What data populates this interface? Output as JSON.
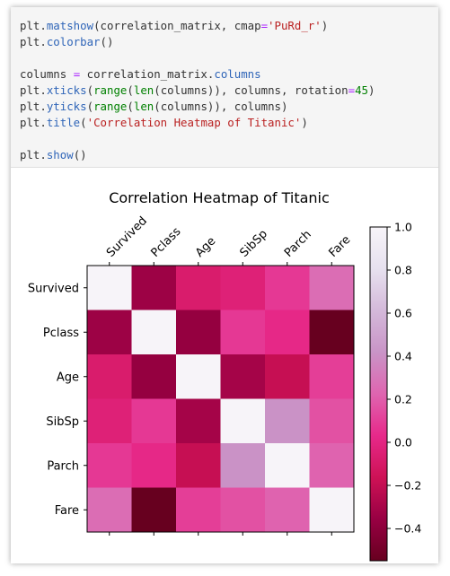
{
  "code": {
    "lines": [
      [
        {
          "t": "plt."
        },
        {
          "t": "matshow",
          "c": "fn"
        },
        {
          "t": "(correlation_matrix, cmap"
        },
        {
          "t": "=",
          "c": "op"
        },
        {
          "t": "'PuRd_r'",
          "c": "str"
        },
        {
          "t": ")"
        }
      ],
      [
        {
          "t": "plt."
        },
        {
          "t": "colorbar",
          "c": "fn"
        },
        {
          "t": "()"
        }
      ],
      [],
      [
        {
          "t": "columns "
        },
        {
          "t": "=",
          "c": "op"
        },
        {
          "t": " correlation_matrix."
        },
        {
          "t": "columns",
          "c": "fn"
        }
      ],
      [
        {
          "t": "plt."
        },
        {
          "t": "xticks",
          "c": "fn"
        },
        {
          "t": "("
        },
        {
          "t": "range",
          "c": "bi"
        },
        {
          "t": "("
        },
        {
          "t": "len",
          "c": "bi"
        },
        {
          "t": "(columns)), columns, rotation"
        },
        {
          "t": "=",
          "c": "op"
        },
        {
          "t": "45",
          "c": "num"
        },
        {
          "t": ")"
        }
      ],
      [
        {
          "t": "plt."
        },
        {
          "t": "yticks",
          "c": "fn"
        },
        {
          "t": "("
        },
        {
          "t": "range",
          "c": "bi"
        },
        {
          "t": "("
        },
        {
          "t": "len",
          "c": "bi"
        },
        {
          "t": "(columns)), columns)"
        }
      ],
      [
        {
          "t": "plt."
        },
        {
          "t": "title",
          "c": "fn"
        },
        {
          "t": "("
        },
        {
          "t": "'Correlation Heatmap of Titanic'",
          "c": "str"
        },
        {
          "t": ")"
        }
      ],
      [],
      [
        {
          "t": "plt."
        },
        {
          "t": "show",
          "c": "fn"
        },
        {
          "t": "()"
        }
      ]
    ]
  },
  "chart_data": {
    "type": "heatmap",
    "title": "Correlation Heatmap of Titanic",
    "colormap": "PuRd_r",
    "categories": [
      "Survived",
      "Pclass",
      "Age",
      "SibSp",
      "Parch",
      "Fare"
    ],
    "values": [
      [
        1.0,
        -0.34,
        -0.08,
        -0.04,
        0.08,
        0.26
      ],
      [
        -0.34,
        1.0,
        -0.37,
        0.08,
        0.02,
        -0.55
      ],
      [
        -0.08,
        -0.37,
        1.0,
        -0.31,
        -0.19,
        0.1
      ],
      [
        -0.04,
        0.08,
        -0.31,
        1.0,
        0.41,
        0.16
      ],
      [
        0.08,
        0.02,
        -0.19,
        0.41,
        1.0,
        0.22
      ],
      [
        0.26,
        -0.55,
        0.1,
        0.16,
        0.22,
        1.0
      ]
    ],
    "colorbar": {
      "range": [
        -0.55,
        1.0
      ],
      "ticks": [
        1.0,
        0.8,
        0.6,
        0.4,
        0.2,
        0.0,
        -0.2,
        -0.4
      ],
      "tick_labels": [
        "1.0",
        "0.8",
        "0.6",
        "0.4",
        "0.2",
        "0.0",
        "−0.2",
        "−0.4"
      ]
    }
  }
}
